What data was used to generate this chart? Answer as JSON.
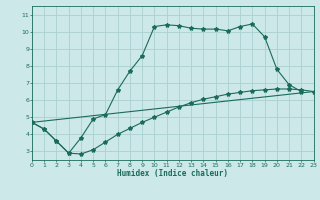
{
  "xlabel": "Humidex (Indice chaleur)",
  "background_color": "#cce8e8",
  "line_color": "#1a6b5a",
  "grid_color": "#aad0d0",
  "xlim": [
    0,
    23
  ],
  "ylim": [
    2.5,
    11.5
  ],
  "xticks": [
    0,
    1,
    2,
    3,
    4,
    5,
    6,
    7,
    8,
    9,
    10,
    11,
    12,
    13,
    14,
    15,
    16,
    17,
    18,
    19,
    20,
    21,
    22,
    23
  ],
  "yticks": [
    3,
    4,
    5,
    6,
    7,
    8,
    9,
    10,
    11
  ],
  "line1_x": [
    0,
    1,
    2,
    3,
    4,
    5,
    6,
    7,
    8,
    9,
    10,
    11,
    12,
    13,
    14,
    15,
    16,
    17,
    18,
    19,
    20,
    21,
    22
  ],
  "line1_y": [
    4.7,
    4.3,
    3.6,
    2.9,
    3.8,
    4.9,
    5.15,
    6.6,
    7.7,
    8.6,
    10.3,
    10.4,
    10.35,
    10.2,
    10.15,
    10.15,
    10.05,
    10.3,
    10.45,
    9.7,
    7.8,
    6.9,
    6.5
  ],
  "line2_x": [
    0,
    1,
    2,
    3,
    4,
    5,
    6,
    7,
    8,
    9,
    10,
    11,
    12,
    13,
    14,
    15,
    16,
    17,
    18,
    19,
    20,
    21,
    22,
    23
  ],
  "line2_y": [
    4.7,
    4.3,
    3.6,
    2.9,
    2.85,
    3.1,
    3.55,
    4.0,
    4.35,
    4.7,
    5.0,
    5.3,
    5.6,
    5.85,
    6.05,
    6.2,
    6.35,
    6.45,
    6.55,
    6.6,
    6.65,
    6.65,
    6.6,
    6.5
  ],
  "line3_x": [
    0,
    23
  ],
  "line3_y": [
    4.7,
    6.5
  ],
  "figsize": [
    3.2,
    2.0
  ],
  "dpi": 100
}
